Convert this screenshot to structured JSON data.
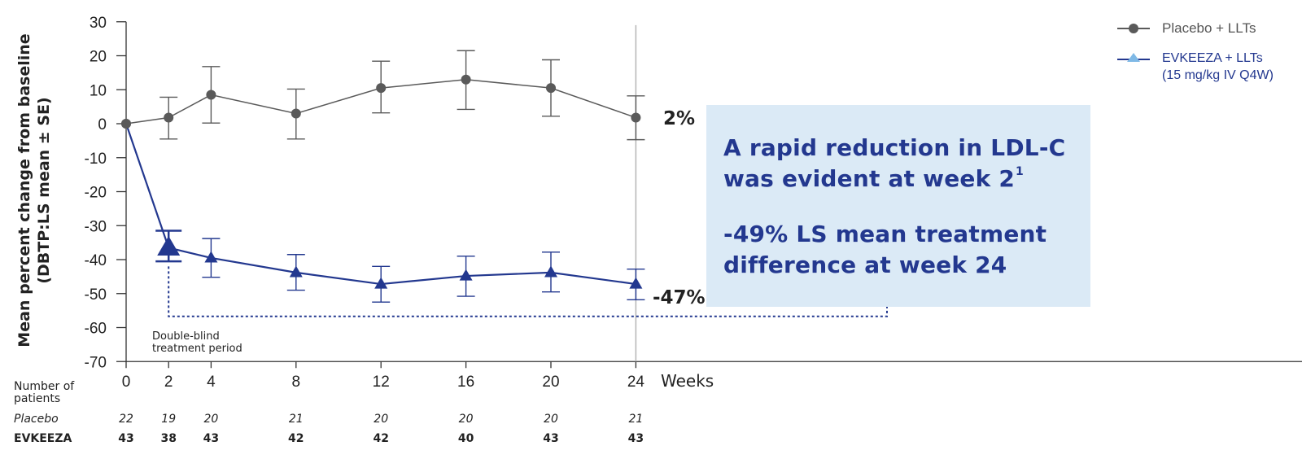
{
  "chart_data": {
    "type": "line",
    "ylabel_line1": "Mean percent change from baseline",
    "ylabel_line2": "(DBTP:LS mean ± SE)",
    "xlabel": "Weeks",
    "ylim": [
      -70,
      30
    ],
    "yticks": [
      30,
      20,
      10,
      0,
      -10,
      -20,
      -30,
      -40,
      -50,
      -60,
      -70
    ],
    "xticks": [
      0,
      2,
      4,
      8,
      12,
      16,
      20,
      24
    ],
    "x": [
      0,
      2,
      4,
      8,
      12,
      16,
      20,
      24
    ],
    "series": [
      {
        "name": "Placebo + LLTs",
        "color": "#5a5a5a",
        "marker": "circle",
        "values": [
          0,
          1.8,
          8.5,
          3,
          10.5,
          13,
          10.5,
          1.8
        ],
        "se_upper": [
          0,
          7.8,
          16.8,
          10.2,
          18.4,
          21.5,
          18.8,
          8.2
        ],
        "se_lower": [
          0,
          -4.5,
          0.2,
          -4.5,
          3.2,
          4.2,
          2.2,
          -4.7
        ]
      },
      {
        "name": "EVKEEZA + LLTs",
        "color": "#23388f",
        "marker_color": "#23388f",
        "legend_marker_color": "#7fb9e6",
        "marker": "triangle",
        "values": [
          0,
          -36.5,
          -39.5,
          -43.8,
          -47.2,
          -44.8,
          -43.8,
          -47.2
        ],
        "se_upper": [
          0,
          -31.5,
          -33.8,
          -38.5,
          -42,
          -39,
          -37.8,
          -42.8
        ],
        "se_lower": [
          0,
          -40.5,
          -45.2,
          -49,
          -52.5,
          -50.8,
          -49.5,
          -51.8
        ]
      }
    ],
    "annotations": {
      "placebo_end": "2%",
      "evkeeza_end": "-47%",
      "period_label_line1": "Double-blind",
      "period_label_line2": "treatment period"
    },
    "grid": false,
    "legend_position": "top-right"
  },
  "legend": {
    "placebo_label": "Placebo + LLTs",
    "evkeeza_label_line1": "EVKEEZA + LLTs",
    "evkeeza_label_line2": "(15 mg/kg IV Q4W)"
  },
  "callout": {
    "line1": "A rapid reduction in LDL-C",
    "line2_text": "was evident at week 2",
    "line2_superscript": "1",
    "line3": "-49% LS mean treatment",
    "line4": "difference at week 24"
  },
  "patients_table": {
    "header_line1": "Number of",
    "header_line2": "patients",
    "placebo_label": "Placebo",
    "evkeeza_label": "EVKEEZA",
    "placebo_counts": [
      "22",
      "19",
      "20",
      "21",
      "20",
      "20",
      "20",
      "21"
    ],
    "evkeeza_counts": [
      "43",
      "38",
      "43",
      "42",
      "42",
      "40",
      "43",
      "43"
    ]
  }
}
